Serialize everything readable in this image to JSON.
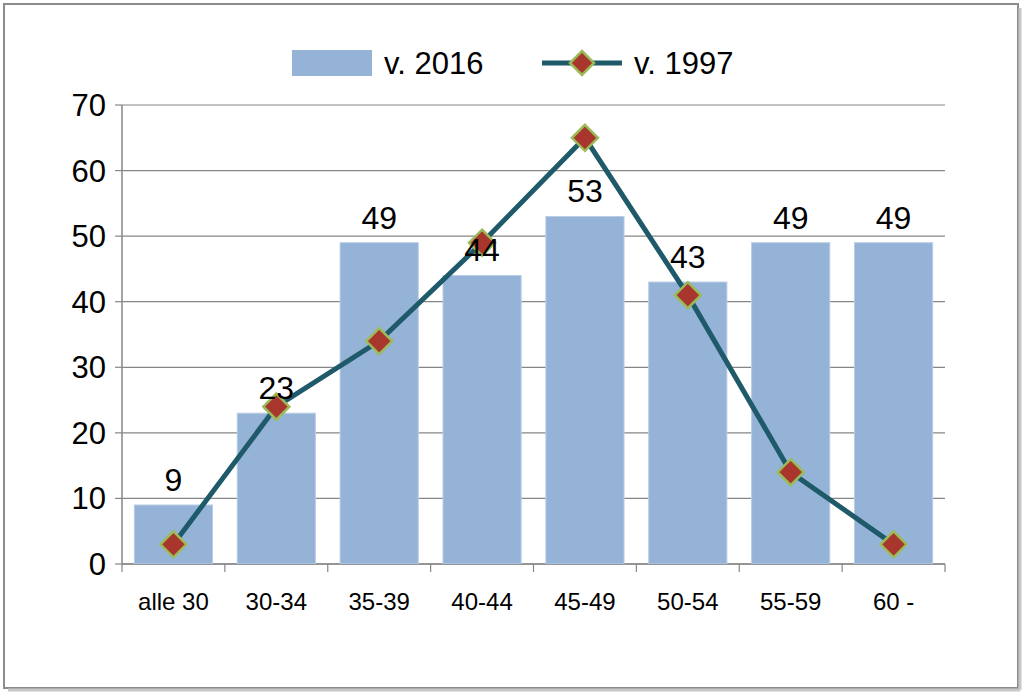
{
  "chart_data": {
    "type": "bar",
    "categories": [
      "alle 30",
      "30-34",
      "35-39",
      "40-44",
      "45-49",
      "50-54",
      "55-59",
      "60 -"
    ],
    "series": [
      {
        "name": "v. 2016",
        "type": "bar",
        "color": "#95b3d7",
        "data_labels": true,
        "values": [
          9,
          23,
          49,
          44,
          53,
          43,
          49,
          49
        ]
      },
      {
        "name": "v. 1997",
        "type": "line",
        "color": "#1f5a6b",
        "marker": "diamond",
        "line_style": "solid",
        "values": [
          3,
          24,
          34,
          49,
          65,
          41,
          14,
          3
        ]
      }
    ],
    "ylim": [
      0,
      70
    ],
    "yticks": [
      0,
      10,
      20,
      30,
      40,
      50,
      60,
      70
    ],
    "grid": true,
    "legend": "top"
  }
}
